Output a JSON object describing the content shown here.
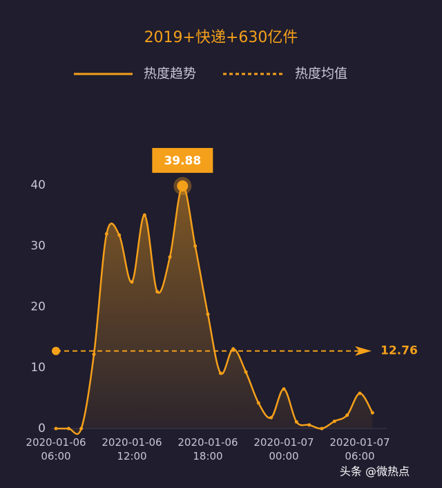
{
  "chart_data": {
    "type": "line",
    "title": "2019+快递+630亿件",
    "categories": [
      "2020-01-06\n06:00",
      null,
      null,
      null,
      null,
      null,
      "2020-01-06\n12:00",
      null,
      null,
      null,
      null,
      null,
      "2020-01-06\n18:00",
      null,
      null,
      null,
      null,
      null,
      "2020-01-07\n00:00",
      null,
      null,
      null,
      null,
      null,
      "2020-01-07\n06:00",
      null
    ],
    "series": [
      {
        "name": "热度趋势",
        "color": "#f5a01a",
        "values": [
          0,
          0,
          0,
          12.2,
          32,
          31.8,
          24.1,
          35.1,
          22.5,
          28.2,
          39.88,
          30,
          18.8,
          9.1,
          13.1,
          9.3,
          4.2,
          1.8,
          6.5,
          1.1,
          0.6,
          0,
          1.2,
          2.2,
          5.8,
          2.6
        ]
      }
    ],
    "mean": {
      "name": "热度均值",
      "value": 12.76
    },
    "ylim": [
      0,
      40
    ],
    "yticks": [
      0,
      10,
      20,
      30,
      40
    ],
    "watermark": "头条 @微热点"
  }
}
